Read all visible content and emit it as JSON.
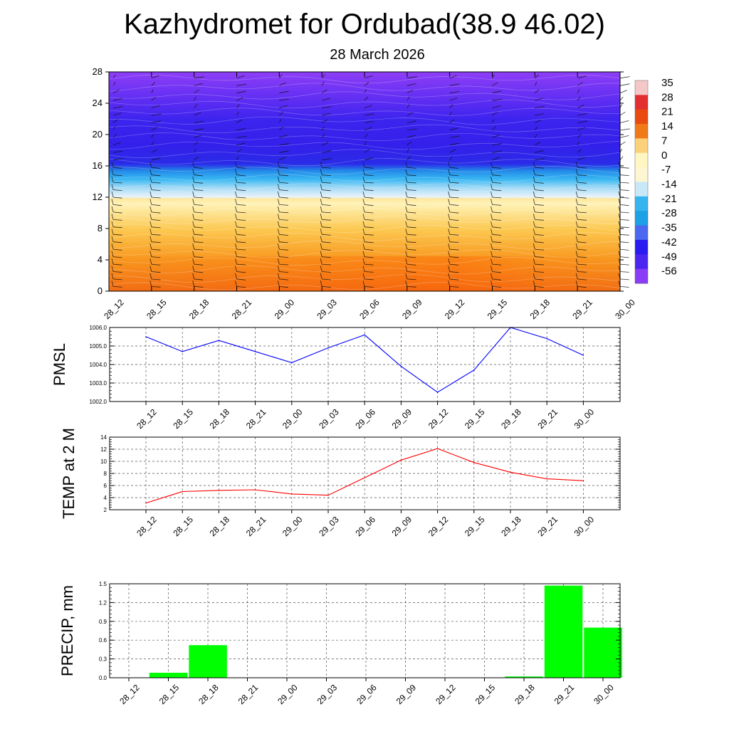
{
  "title": "Kazhydromet for Ordubad(38.9 46.02)",
  "subtitle": "28 March 2026",
  "time_labels": [
    "28_12",
    "28_15",
    "28_18",
    "28_21",
    "29_00",
    "29_03",
    "29_06",
    "29_09",
    "29_12",
    "29_15",
    "29_18",
    "29_21",
    "30_00"
  ],
  "colorbar": {
    "labels": [
      "35",
      "28",
      "21",
      "14",
      "7",
      "0",
      "-7",
      "-14",
      "-21",
      "-28",
      "-35",
      "-42",
      "-49",
      "-56"
    ],
    "colors": [
      "#f5c8c8",
      "#e23030",
      "#e84a10",
      "#f07a18",
      "#fbd27a",
      "#fff6c2",
      "#fdf6d0",
      "#c8e8f8",
      "#36b4f0",
      "#1ca0e6",
      "#4a68f0",
      "#2a1cf0",
      "#4a26f0",
      "#8a3cf6"
    ]
  },
  "chart_data": [
    {
      "type": "heatmap",
      "name": "upper-air temperature cross-section",
      "xlabel": "",
      "ylabel": "",
      "ylim": [
        0,
        28
      ],
      "yticks": [
        "0",
        "4",
        "8",
        "12",
        "16",
        "20",
        "24",
        "28"
      ],
      "color_range": [
        -56,
        35
      ],
      "layers": [
        {
          "from": 0,
          "to": 4,
          "value_range": [
            14,
            10
          ]
        },
        {
          "from": 4,
          "to": 8,
          "value_range": [
            10,
            0
          ]
        },
        {
          "from": 8,
          "to": 11.5,
          "value_range": [
            0,
            -10
          ]
        },
        {
          "from": 11.5,
          "to": 16,
          "value_range": [
            -14,
            -42
          ]
        },
        {
          "from": 16,
          "to": 28,
          "value_range": [
            -49,
            -56
          ]
        }
      ]
    },
    {
      "type": "line",
      "name": "PMSL",
      "ylabel": "PMSL",
      "ylim": [
        1002.0,
        1006.0
      ],
      "yticks": [
        "1002.0",
        "1003.0",
        "1004.0",
        "1005.0",
        "1006.0"
      ],
      "color": "#0000ff",
      "values": [
        1005.5,
        1004.7,
        1005.3,
        1004.7,
        1004.1,
        1004.9,
        1005.6,
        1003.9,
        1002.5,
        1003.7,
        1006.0,
        1005.4,
        1004.5
      ]
    },
    {
      "type": "line",
      "name": "TEMP at 2 M",
      "ylabel": "TEMP at 2 M",
      "ylim": [
        2,
        14
      ],
      "yticks": [
        "2",
        "4",
        "6",
        "8",
        "10",
        "12",
        "14"
      ],
      "color": "#ff0000",
      "values": [
        3.1,
        5.0,
        5.2,
        5.3,
        4.6,
        4.4,
        7.3,
        10.2,
        12.1,
        9.8,
        8.2,
        7.1,
        6.8
      ]
    },
    {
      "type": "bar",
      "name": "PRECIP, mm",
      "ylabel": "PRECIP, mm",
      "ylim": [
        0.0,
        1.5
      ],
      "yticks": [
        "0.0",
        "0.3",
        "0.6",
        "0.9",
        "1.2",
        "1.5"
      ],
      "color": "#00ff00",
      "values": [
        0,
        0.08,
        0.52,
        0,
        0,
        0,
        0,
        0,
        0,
        0,
        0.02,
        1.47,
        0.8
      ]
    }
  ]
}
